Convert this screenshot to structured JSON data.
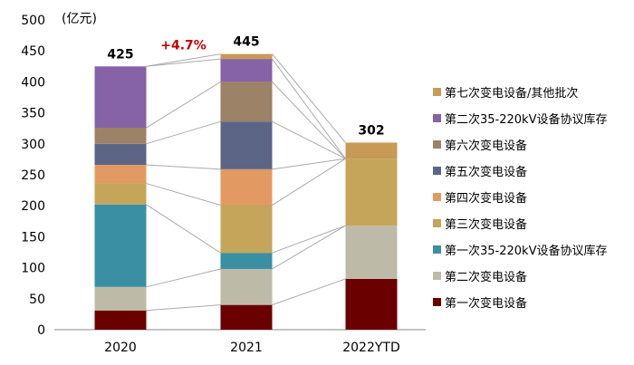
{
  "chart_data": {
    "type": "bar",
    "stacked": true,
    "unit_label": "(亿元)",
    "categories": [
      "2020",
      "2021",
      "2022YTD"
    ],
    "ylim": [
      0,
      500
    ],
    "yticks": [
      0,
      50,
      100,
      150,
      200,
      250,
      300,
      350,
      400,
      450,
      500
    ],
    "totals": [
      425,
      445,
      302
    ],
    "growth_label": "+4.7%",
    "growth_color": "#C00000",
    "legend_position": "right",
    "connector_lines": true,
    "series": [
      {
        "name": "第一次变电设备",
        "color": "#6B0000",
        "values": [
          31,
          40,
          82
        ]
      },
      {
        "name": "第二次变电设备",
        "color": "#BDBBA8",
        "values": [
          38,
          58,
          86
        ]
      },
      {
        "name": "第一次35-220kV设备协议库存",
        "color": "#3A8FA3",
        "values": [
          133,
          26,
          0
        ]
      },
      {
        "name": "第三次变电设备",
        "color": "#C4A55A",
        "values": [
          34,
          77,
          108
        ]
      },
      {
        "name": "第四次变电设备",
        "color": "#E39A62",
        "values": [
          30,
          58,
          0
        ]
      },
      {
        "name": "第五次变电设备",
        "color": "#5D6587",
        "values": [
          34,
          77,
          0
        ]
      },
      {
        "name": "第六次变电设备",
        "color": "#9C8267",
        "values": [
          26,
          64,
          0
        ]
      },
      {
        "name": "第二次35-220kV设备协议库存",
        "color": "#8563A6",
        "values": [
          99,
          37,
          0
        ]
      },
      {
        "name": "第七次变电设备/其他批次",
        "color": "#C79A55",
        "values": [
          0,
          8,
          26
        ]
      }
    ]
  }
}
